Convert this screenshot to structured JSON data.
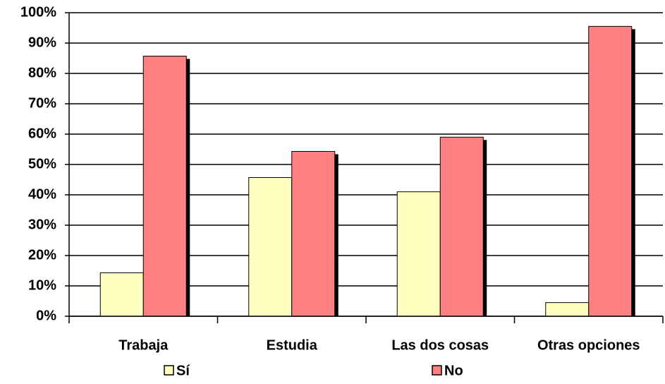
{
  "chart_data": {
    "type": "bar",
    "categories": [
      "Trabaja",
      "Estudia",
      "Las dos cosas",
      "Otras opciones"
    ],
    "series": [
      {
        "name": "Sí",
        "color": "#ffffc0",
        "values": [
          14.3,
          45.7,
          41,
          4.5
        ]
      },
      {
        "name": "No",
        "color": "#ff8080",
        "values": [
          85.7,
          54.3,
          59,
          95.5
        ]
      }
    ],
    "ylim": [
      0,
      100
    ],
    "yticks": [
      {
        "value": 0,
        "label": "0%"
      },
      {
        "value": 10,
        "label": "10%"
      },
      {
        "value": 20,
        "label": "20%"
      },
      {
        "value": 30,
        "label": "30%"
      },
      {
        "value": 40,
        "label": "40%"
      },
      {
        "value": 50,
        "label": "50%"
      },
      {
        "value": 60,
        "label": "60%"
      },
      {
        "value": 70,
        "label": "70%"
      },
      {
        "value": 80,
        "label": "80%"
      },
      {
        "value": 90,
        "label": "90%"
      },
      {
        "value": 100,
        "label": "100%"
      }
    ],
    "grid": true,
    "legend": "bottom"
  }
}
